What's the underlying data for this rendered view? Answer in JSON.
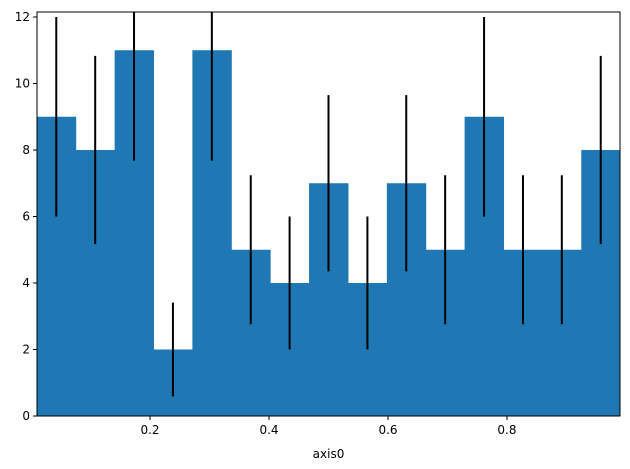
{
  "chart_data": {
    "type": "bar",
    "subtype": "histogram-with-error-bars",
    "title": "",
    "xlabel": "axis0",
    "ylabel": "",
    "xlim": [
      0.01,
      0.99
    ],
    "ylim": [
      0,
      12.15
    ],
    "bin_edges": [
      0.0097,
      0.0751,
      0.1405,
      0.2058,
      0.2712,
      0.3366,
      0.4019,
      0.4673,
      0.5327,
      0.5981,
      0.6634,
      0.7288,
      0.7942,
      0.8595,
      0.9249,
      0.9903
    ],
    "values": [
      9,
      8,
      11,
      2,
      11,
      5,
      4,
      7,
      4,
      7,
      5,
      9,
      5,
      5,
      8
    ],
    "error_x": [
      0.0424,
      0.1078,
      0.1731,
      0.2385,
      0.3039,
      0.3693,
      0.4346,
      0.5,
      0.5654,
      0.6307,
      0.6961,
      0.7615,
      0.8269,
      0.8922,
      0.9576
    ],
    "errors": [
      3.0,
      2.83,
      3.32,
      1.41,
      3.32,
      2.24,
      2.0,
      2.65,
      2.0,
      2.65,
      2.24,
      3.0,
      2.24,
      2.24,
      2.83
    ],
    "x_ticks": [
      0.2,
      0.4,
      0.6,
      0.8
    ],
    "x_tick_labels": [
      "0.2",
      "0.4",
      "0.6",
      "0.8"
    ],
    "y_ticks": [
      0,
      2,
      4,
      6,
      8,
      10,
      12
    ],
    "y_tick_labels": [
      "0",
      "2",
      "4",
      "6",
      "8",
      "10",
      "12"
    ],
    "bar_color": "#1f77b4",
    "error_color": "#000000",
    "grid": false,
    "legend": "none"
  }
}
